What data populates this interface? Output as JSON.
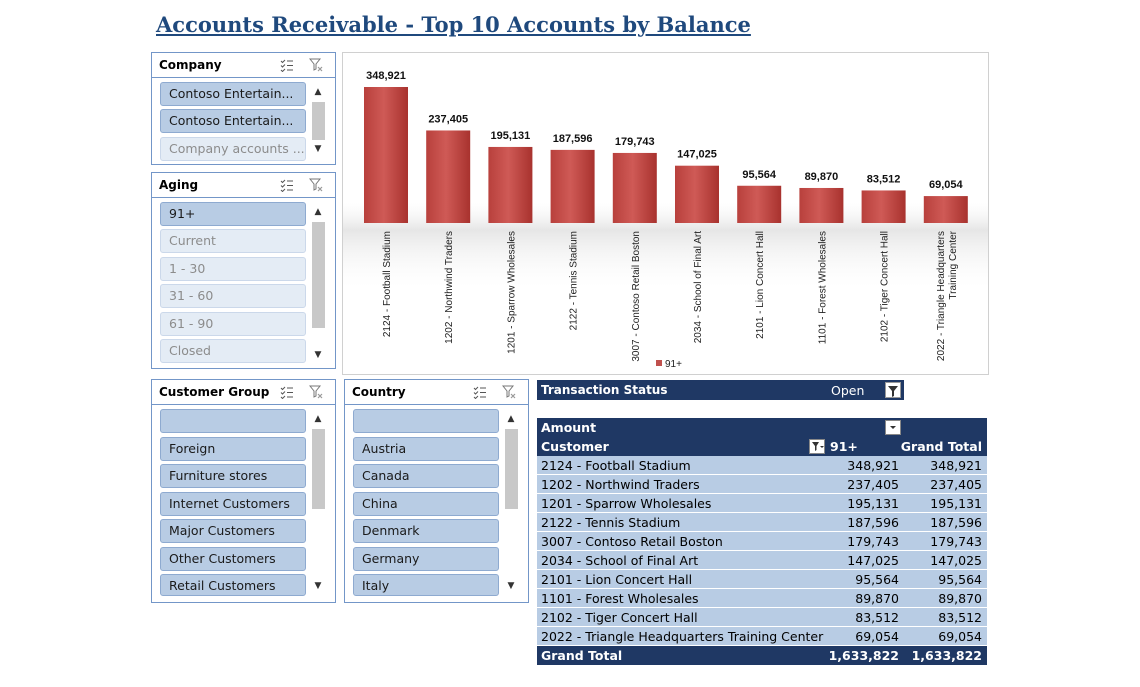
{
  "title": "Accounts Receivable - Top 10 Accounts by Balance",
  "slicers": {
    "company": {
      "title": "Company",
      "items": [
        {
          "label": "Contoso Entertain...",
          "selected": true
        },
        {
          "label": "Contoso Entertain...",
          "selected": true
        },
        {
          "label": "Company accounts ...",
          "selected": false
        }
      ]
    },
    "aging": {
      "title": "Aging",
      "items": [
        {
          "label": "91+",
          "selected": true
        },
        {
          "label": "Current",
          "selected": false
        },
        {
          "label": "1 - 30",
          "selected": false
        },
        {
          "label": "31 - 60",
          "selected": false
        },
        {
          "label": "61 - 90",
          "selected": false
        },
        {
          "label": "Closed",
          "selected": false
        }
      ]
    },
    "customer_group": {
      "title": "Customer Group",
      "items": [
        {
          "label": "",
          "selected": true
        },
        {
          "label": "Foreign",
          "selected": true
        },
        {
          "label": "Furniture stores",
          "selected": true
        },
        {
          "label": "Internet Customers",
          "selected": true
        },
        {
          "label": "Major Customers",
          "selected": true
        },
        {
          "label": "Other Customers",
          "selected": true
        },
        {
          "label": "Retail Customers",
          "selected": true
        }
      ]
    },
    "country": {
      "title": "Country",
      "items": [
        {
          "label": "",
          "selected": true
        },
        {
          "label": "Austria",
          "selected": true
        },
        {
          "label": "Canada",
          "selected": true
        },
        {
          "label": "China",
          "selected": true
        },
        {
          "label": "Denmark",
          "selected": true
        },
        {
          "label": "Germany",
          "selected": true
        },
        {
          "label": "Italy",
          "selected": true
        }
      ]
    }
  },
  "chart_data": {
    "type": "bar",
    "categories": [
      "2124 - Football Stadium",
      "1202 - Northwind Traders",
      "1201 - Sparrow Wholesales",
      "2122 - Tennis Stadium",
      "3007 - Contoso Retail Boston",
      "2034 - School of Final Art",
      "2101 - Lion Concert Hall",
      "1101 - Forest Wholesales",
      "2102 - Tiger Concert Hall",
      "2022 - Triangle Headquarters Training Center"
    ],
    "series": [
      {
        "name": "91+",
        "values": [
          348921,
          237405,
          195131,
          187596,
          179743,
          147025,
          95564,
          89870,
          83512,
          69054
        ]
      }
    ],
    "data_labels": [
      "348,921",
      "237,405",
      "195,131",
      "187,596",
      "179,743",
      "147,025",
      "95,564",
      "89,870",
      "83,512",
      "69,054"
    ],
    "legend": "bottom",
    "color": "#c0504d"
  },
  "transaction_status": {
    "label": "Transaction Status",
    "value": "Open"
  },
  "pivot": {
    "values_label": "Amount",
    "row_label": "Customer",
    "col_label": "91+",
    "total_col_label": "Grand Total",
    "rows": [
      {
        "customer": "2124 - Football Stadium",
        "v91": "348,921",
        "total": "348,921"
      },
      {
        "customer": "1202 - Northwind Traders",
        "v91": "237,405",
        "total": "237,405"
      },
      {
        "customer": "1201 - Sparrow Wholesales",
        "v91": "195,131",
        "total": "195,131"
      },
      {
        "customer": "2122 - Tennis Stadium",
        "v91": "187,596",
        "total": "187,596"
      },
      {
        "customer": "3007 - Contoso Retail Boston",
        "v91": "179,743",
        "total": "179,743"
      },
      {
        "customer": "2034 - School of Final Art",
        "v91": "147,025",
        "total": "147,025"
      },
      {
        "customer": "2101 - Lion Concert Hall",
        "v91": "95,564",
        "total": "95,564"
      },
      {
        "customer": "1101 - Forest Wholesales",
        "v91": "89,870",
        "total": "89,870"
      },
      {
        "customer": "2102 - Tiger Concert Hall",
        "v91": "83,512",
        "total": "83,512"
      },
      {
        "customer": "2022 - Triangle Headquarters Training Center",
        "v91": "69,054",
        "total": "69,054"
      }
    ],
    "grand_total": {
      "label": "Grand Total",
      "v91": "1,633,822",
      "total": "1,633,822"
    }
  }
}
